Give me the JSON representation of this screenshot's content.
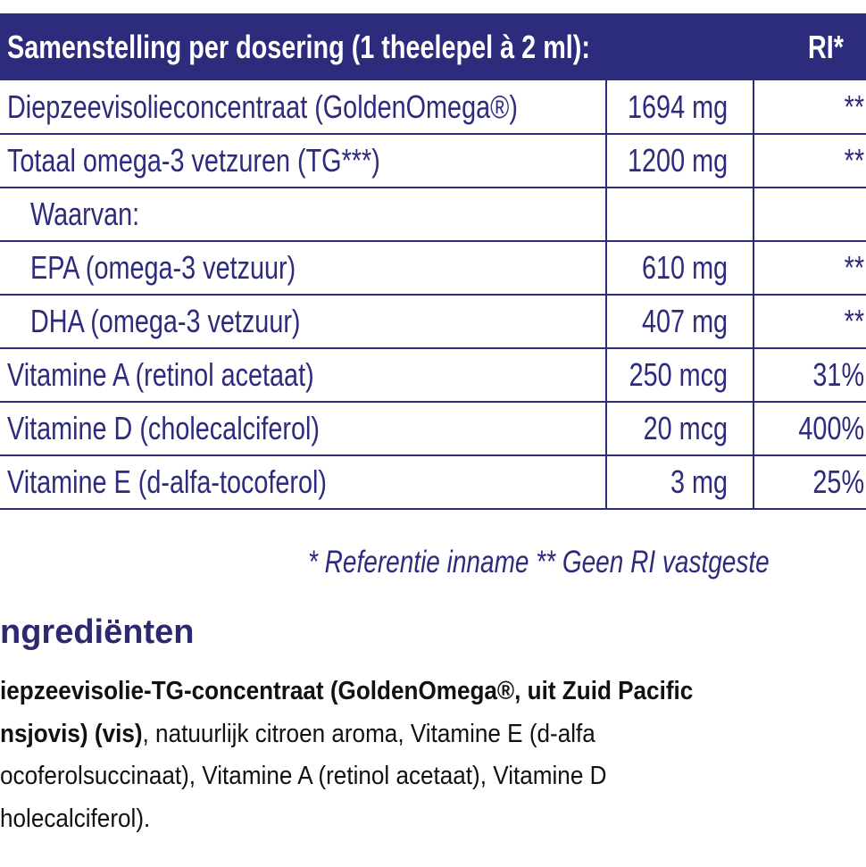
{
  "table": {
    "header": [
      "Samenstelling per dosering (1 theelepel à 2 ml):",
      "RI*"
    ],
    "rows": [
      [
        "Diepzeevisolieconcentraat (GoldenOmega®)",
        "1694 mg",
        "**"
      ],
      [
        "Totaal omega-3 vetzuren (TG***)",
        "1200 mg",
        "**"
      ],
      [
        "Waarvan:"
      ],
      [
        "EPA (omega-3 vetzuur)",
        "610 mg",
        "**"
      ],
      [
        "DHA (omega-3 vetzuur)",
        "407 mg",
        "**"
      ],
      [
        "Vitamine A (retinol acetaat)",
        "250 mcg",
        "31%"
      ],
      [
        "Vitamine D (cholecalciferol)",
        "20 mcg",
        "400%"
      ],
      [
        "Vitamine E (d-alfa-tocoferol)",
        "3 mg",
        "25%"
      ]
    ]
  },
  "footnote": "* Referentie inname  ** Geen RI vastgeste",
  "ingredients": {
    "title": "ngrediënten",
    "lines": [
      [
        {
          "text": "iepzeevisolie-TG-concentraat (GoldenOmega®, uit Zuid Pacific",
          "bold": true
        }
      ],
      [
        {
          "text": "nsjovis) (vis)",
          "bold": true
        },
        {
          "text": ", natuurlijk citroen aroma, Vitamine E (d-alfa",
          "bold": false
        }
      ],
      [
        {
          "text": "ocoferolsuccinaat), Vitamine A (retinol acetaat), Vitamine D",
          "bold": false
        }
      ],
      [
        {
          "text": "holecalciferol).",
          "bold": false
        }
      ]
    ]
  }
}
